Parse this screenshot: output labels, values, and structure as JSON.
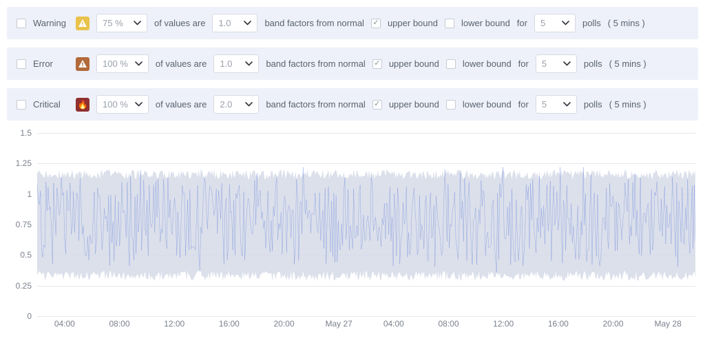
{
  "thresholds": [
    {
      "enabled": false,
      "label": "Warning",
      "icon_bg": "#e8c24a",
      "icon_glyph": "!",
      "percent": "75 %",
      "band_factor": "1.0",
      "upper_checked": true,
      "lower_checked": false,
      "polls": "5",
      "polls_duration": "( 5 mins )"
    },
    {
      "enabled": false,
      "label": "Error",
      "icon_bg": "#b26a3a",
      "icon_glyph": "!",
      "percent": "100 %",
      "band_factor": "1.0",
      "upper_checked": true,
      "lower_checked": false,
      "polls": "5",
      "polls_duration": "( 5 mins )"
    },
    {
      "enabled": false,
      "label": "Critical",
      "icon_bg": "#8f2f2f",
      "icon_glyph": "🔥",
      "percent": "100 %",
      "band_factor": "2.0",
      "upper_checked": true,
      "lower_checked": false,
      "polls": "5",
      "polls_duration": "( 5 mins )"
    }
  ],
  "labels": {
    "of_values_are": "of values are",
    "band_factors_from_normal": "band factors from normal",
    "upper_bound": "upper bound",
    "lower_bound": "lower bound",
    "for": "for",
    "polls": "polls"
  },
  "chart": {
    "type": "line_with_band",
    "y_ticks": [
      0,
      0.25,
      0.5,
      0.75,
      1,
      1.25,
      1.5
    ],
    "ylim": [
      0,
      1.5
    ],
    "x_ticks": [
      "04:00",
      "08:00",
      "12:00",
      "16:00",
      "20:00",
      "May 27",
      "04:00",
      "08:00",
      "12:00",
      "16:00",
      "20:00",
      "May 28"
    ],
    "line_color": "#4a6fd8",
    "line_width": 1,
    "band_color": "#d6dbe8",
    "band_opacity": 0.85,
    "grid_color": "#e4e7ed",
    "background_color": "#ffffff",
    "label_fontsize": 12,
    "label_color": "#7a808c",
    "series_mean": 0.78,
    "series_noise_amp": 0.35,
    "band_upper_center": 1.16,
    "band_lower_center": 0.33,
    "band_jitter": 0.04,
    "n_points": 600
  }
}
